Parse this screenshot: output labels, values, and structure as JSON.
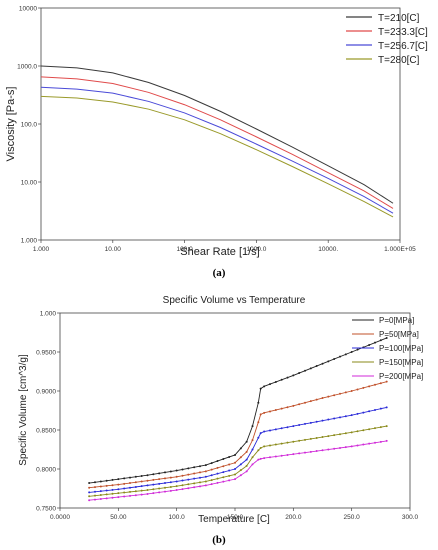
{
  "captions": {
    "a": "(a)",
    "b": "(b)"
  },
  "chart_data": [
    {
      "type": "line",
      "title": "",
      "xlabel": "Shear Rate [1/s]",
      "ylabel": "Viscosity [Pa-s]",
      "xscale": "log",
      "yscale": "log",
      "xlim": [
        1,
        100000
      ],
      "ylim": [
        1,
        10000
      ],
      "x_ticks": [
        "1.000",
        "10.00",
        "100.0",
        "1000.0",
        "10000.",
        "1.000E+05"
      ],
      "y_ticks": [
        "1.000",
        "10.00",
        "100.0",
        "1000.0",
        "10000"
      ],
      "legend_position": "top-right",
      "x": [
        1,
        3.16,
        10,
        31.6,
        100,
        316,
        1000,
        3162,
        10000,
        31623,
        80000
      ],
      "series": [
        {
          "name": "T=210[C]",
          "color": "#3a3a3a",
          "values": [
            1000,
            930,
            760,
            520,
            310,
            165,
            82,
            40,
            19,
            9,
            4.3
          ]
        },
        {
          "name": "T=233.3[C]",
          "color": "#e04b4b",
          "values": [
            650,
            600,
            500,
            350,
            215,
            118,
            60,
            30,
            14.5,
            7,
            3.5
          ]
        },
        {
          "name": "T=256.7[C]",
          "color": "#4a4ad8",
          "values": [
            430,
            400,
            340,
            245,
            155,
            87,
            45,
            23,
            11.5,
            5.6,
            2.9
          ]
        },
        {
          "name": "T=280[C]",
          "color": "#9a9a2a",
          "values": [
            300,
            280,
            240,
            180,
            118,
            68,
            36,
            18.5,
            9.3,
            4.6,
            2.5
          ]
        }
      ]
    },
    {
      "type": "line",
      "title": "Specific Volume vs Temperature",
      "xlabel": "Temperature [C]",
      "ylabel": "Specific Volume [cm^3/g]",
      "xlim": [
        0,
        300
      ],
      "ylim": [
        0.75,
        1.0
      ],
      "x_ticks": [
        "0.0000",
        "50.00",
        "100.0",
        "150.0",
        "200.0",
        "250.0",
        "300.0"
      ],
      "y_ticks": [
        "0.7500",
        "0.8000",
        "0.8500",
        "0.9000",
        "0.9500",
        "1.000"
      ],
      "legend_position": "top-right",
      "x": [
        25,
        50,
        75,
        100,
        125,
        150,
        160,
        165,
        170,
        172,
        175,
        200,
        225,
        250,
        280
      ],
      "series": [
        {
          "name": "P=0[MPa]",
          "color": "#222222",
          "values": [
            0.782,
            0.787,
            0.792,
            0.798,
            0.805,
            0.818,
            0.835,
            0.855,
            0.885,
            0.903,
            0.906,
            0.92,
            0.935,
            0.95,
            0.968
          ]
        },
        {
          "name": "P=50[MPa]",
          "color": "#c0502a",
          "values": [
            0.776,
            0.78,
            0.785,
            0.79,
            0.797,
            0.808,
            0.822,
            0.837,
            0.86,
            0.87,
            0.872,
            0.881,
            0.891,
            0.9,
            0.912
          ]
        },
        {
          "name": "P=100[MPa]",
          "color": "#2a2ad8",
          "values": [
            0.77,
            0.774,
            0.779,
            0.784,
            0.79,
            0.8,
            0.812,
            0.825,
            0.84,
            0.846,
            0.848,
            0.855,
            0.862,
            0.869,
            0.879
          ]
        },
        {
          "name": "P=150[MPa]",
          "color": "#8a8a1a",
          "values": [
            0.765,
            0.769,
            0.773,
            0.778,
            0.784,
            0.793,
            0.804,
            0.815,
            0.824,
            0.827,
            0.829,
            0.835,
            0.841,
            0.847,
            0.855
          ]
        },
        {
          "name": "P=200[MPa]",
          "color": "#d02ad8",
          "values": [
            0.76,
            0.764,
            0.768,
            0.773,
            0.779,
            0.787,
            0.797,
            0.806,
            0.812,
            0.813,
            0.814,
            0.819,
            0.824,
            0.829,
            0.836
          ]
        }
      ]
    }
  ]
}
